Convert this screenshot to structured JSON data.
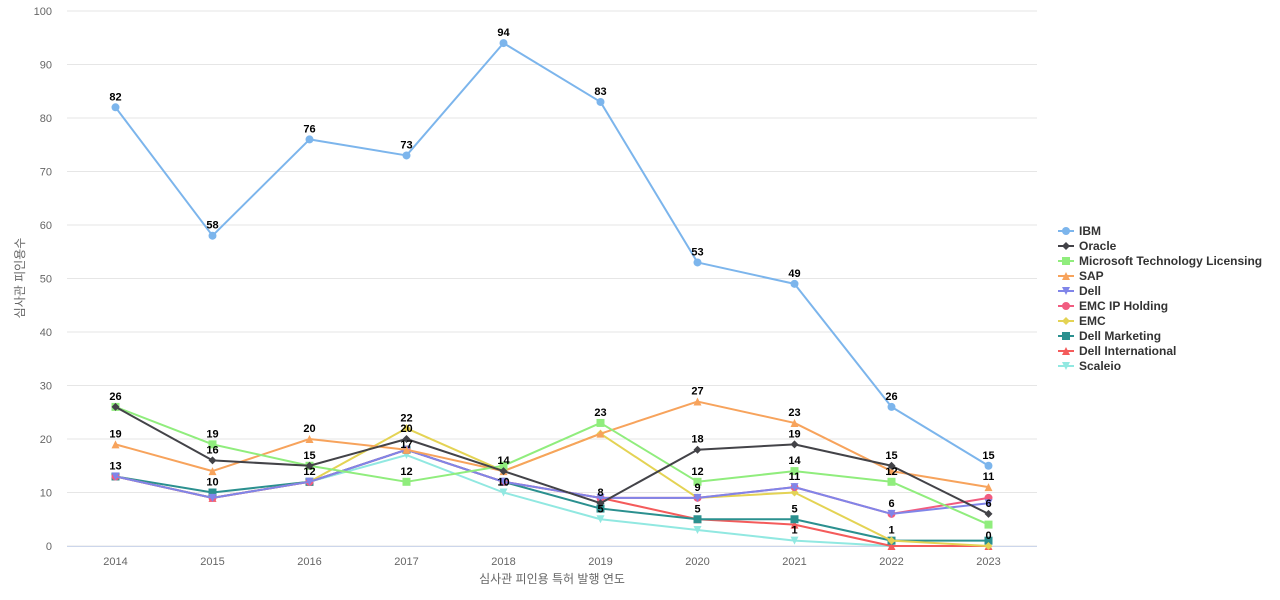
{
  "chart_data": {
    "type": "line",
    "xlabel": "심사관 피인용 특허 발행 연도",
    "ylabel": "심사관 피인용수",
    "ylim": [
      0,
      100
    ],
    "yticks": [
      0,
      10,
      20,
      30,
      40,
      50,
      60,
      70,
      80,
      90,
      100
    ],
    "grid": true,
    "legend_position": "right",
    "categories": [
      "2014",
      "2015",
      "2016",
      "2017",
      "2018",
      "2019",
      "2020",
      "2021",
      "2022",
      "2023"
    ],
    "series": [
      {
        "name": "IBM",
        "color": "#7cb5ec",
        "marker": "circle",
        "values": [
          82,
          58,
          76,
          73,
          94,
          83,
          53,
          49,
          26,
          15
        ],
        "labeled": true
      },
      {
        "name": "Oracle",
        "color": "#434348",
        "marker": "diamond",
        "values": [
          26,
          16,
          15,
          20,
          14,
          8,
          18,
          19,
          15,
          6
        ],
        "labeled": true
      },
      {
        "name": "Microsoft Technology Licensing",
        "color": "#90ed7d",
        "marker": "square",
        "values": [
          26,
          19,
          15,
          12,
          15,
          23,
          12,
          14,
          12,
          4
        ],
        "labeled": true
      },
      {
        "name": "SAP",
        "color": "#f7a35c",
        "marker": "triangle",
        "values": [
          19,
          14,
          20,
          18,
          14,
          21,
          27,
          23,
          14,
          11
        ],
        "labeled": true
      },
      {
        "name": "Dell",
        "color": "#8085e9",
        "marker": "triangle-down",
        "values": [
          13,
          9,
          12,
          18,
          12,
          9,
          9,
          11,
          6,
          8
        ],
        "labeled": false
      },
      {
        "name": "EMC IP Holding",
        "color": "#f15c80",
        "marker": "circle",
        "values": [
          13,
          9,
          12,
          18,
          12,
          9,
          9,
          11,
          6,
          9
        ],
        "labeled": false
      },
      {
        "name": "EMC",
        "color": "#e4d354",
        "marker": "diamond",
        "values": [
          13,
          9,
          12,
          22,
          14,
          21,
          9,
          10,
          1,
          0
        ],
        "labeled": false
      },
      {
        "name": "Dell Marketing",
        "color": "#2b908f",
        "marker": "square",
        "values": [
          13,
          10,
          12,
          18,
          12,
          7,
          5,
          5,
          1,
          1
        ],
        "labeled": true
      },
      {
        "name": "Dell International",
        "color": "#f45b5b",
        "marker": "triangle",
        "values": [
          13,
          9,
          12,
          18,
          12,
          9,
          5,
          4,
          0,
          0
        ],
        "labeled": false
      },
      {
        "name": "Scaleio",
        "color": "#91e8e1",
        "marker": "triangle-down",
        "values": [
          13,
          9,
          12,
          17,
          10,
          5,
          3,
          1,
          0,
          0
        ],
        "labeled": false
      }
    ],
    "data_labels": [
      {
        "category": "2014",
        "value": 82
      },
      {
        "category": "2015",
        "value": 58
      },
      {
        "category": "2016",
        "value": 76
      },
      {
        "category": "2017",
        "value": 73
      },
      {
        "category": "2018",
        "value": 94
      },
      {
        "category": "2019",
        "value": 83
      },
      {
        "category": "2020",
        "value": 53
      },
      {
        "category": "2021",
        "value": 49
      },
      {
        "category": "2022",
        "value": 26
      },
      {
        "category": "2023",
        "value": 15
      },
      {
        "category": "2014",
        "value": 26
      },
      {
        "category": "2015",
        "value": 19
      },
      {
        "category": "2016",
        "value": 20
      },
      {
        "category": "2017",
        "value": 22
      },
      {
        "category": "2018",
        "value": 14
      },
      {
        "category": "2019",
        "value": 23
      },
      {
        "category": "2020",
        "value": 27
      },
      {
        "category": "2021",
        "value": 23
      },
      {
        "category": "2022",
        "value": 15
      },
      {
        "category": "2023",
        "value": 11
      },
      {
        "category": "2014",
        "value": 19
      },
      {
        "category": "2015",
        "value": 16
      },
      {
        "category": "2016",
        "value": 15
      },
      {
        "category": "2017",
        "value": 20
      },
      {
        "category": "2019",
        "value": 8
      },
      {
        "category": "2020",
        "value": 18
      },
      {
        "category": "2021",
        "value": 19
      },
      {
        "category": "2022",
        "value": 12
      },
      {
        "category": "2023",
        "value": 6
      },
      {
        "category": "2014",
        "value": 13
      },
      {
        "category": "2015",
        "value": 10
      },
      {
        "category": "2016",
        "value": 12
      },
      {
        "category": "2017",
        "value": 17
      },
      {
        "category": "2018",
        "value": 10
      },
      {
        "category": "2019",
        "value": 5
      },
      {
        "category": "2020",
        "value": 12
      },
      {
        "category": "2021",
        "value": 14
      },
      {
        "category": "2022",
        "value": 6
      },
      {
        "category": "2023",
        "value": 0
      },
      {
        "category": "2017",
        "value": 12
      },
      {
        "category": "2020",
        "value": 9
      },
      {
        "category": "2021",
        "value": 11
      },
      {
        "category": "2020",
        "value": 5
      },
      {
        "category": "2021",
        "value": 5
      },
      {
        "category": "2021",
        "value": 1
      },
      {
        "category": "2022",
        "value": 1
      }
    ]
  }
}
